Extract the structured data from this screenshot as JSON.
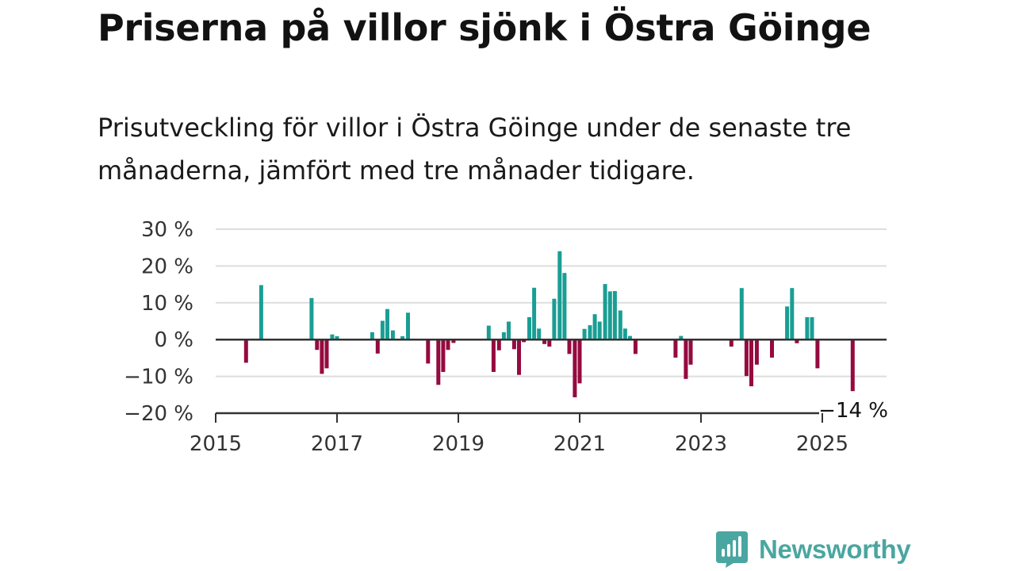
{
  "header": {
    "title": "Priserna på villor sjönk i Östra Göinge",
    "subtitle": "Prisutveckling för villor i Östra Göinge under de senaste tre månaderna, jämfört med tre månader tidigare."
  },
  "colors": {
    "positive": "#1a9e94",
    "negative": "#950a3f",
    "grid": "#dddddd",
    "zero_line": "#333333"
  },
  "logo": {
    "text": "Newsworthy",
    "icon": "bar-chart-speech-bubble-icon"
  },
  "chart_data": {
    "type": "bar",
    "title": "",
    "xlabel": "",
    "ylabel": "",
    "x_unit": "year (decimal)",
    "ylim": [
      -20,
      30
    ],
    "xlim": [
      2015,
      2026.1
    ],
    "grid": true,
    "y_ticks": [
      {
        "value": 30,
        "label": "30 %"
      },
      {
        "value": 20,
        "label": "20 %"
      },
      {
        "value": 10,
        "label": "10 %"
      },
      {
        "value": 0,
        "label": "0 %"
      },
      {
        "value": -10,
        "label": "−10 %"
      },
      {
        "value": -20,
        "label": "−20 %"
      }
    ],
    "x_ticks": [
      {
        "value": 2015,
        "label": "2015"
      },
      {
        "value": 2017,
        "label": "2017"
      },
      {
        "value": 2019,
        "label": "2019"
      },
      {
        "value": 2021,
        "label": "2021"
      },
      {
        "value": 2023,
        "label": "2023"
      },
      {
        "value": 2025,
        "label": "2025"
      }
    ],
    "series": [
      {
        "points": [
          {
            "x": 2015.5,
            "y": -6.3
          },
          {
            "x": 2015.75,
            "y": 14.8
          },
          {
            "x": 2016.58,
            "y": 11.3
          },
          {
            "x": 2016.67,
            "y": -2.8
          },
          {
            "x": 2016.75,
            "y": -9.3
          },
          {
            "x": 2016.83,
            "y": -7.8
          },
          {
            "x": 2016.92,
            "y": 1.4
          },
          {
            "x": 2017.0,
            "y": 0.9
          },
          {
            "x": 2017.58,
            "y": 2.0
          },
          {
            "x": 2017.67,
            "y": -3.8
          },
          {
            "x": 2017.75,
            "y": 5.1
          },
          {
            "x": 2017.83,
            "y": 8.3
          },
          {
            "x": 2017.92,
            "y": 2.5
          },
          {
            "x": 2018.08,
            "y": 0.9
          },
          {
            "x": 2018.17,
            "y": 7.3
          },
          {
            "x": 2018.5,
            "y": -6.5
          },
          {
            "x": 2018.67,
            "y": -12.3
          },
          {
            "x": 2018.75,
            "y": -8.8
          },
          {
            "x": 2018.83,
            "y": -2.8
          },
          {
            "x": 2018.92,
            "y": -0.9
          },
          {
            "x": 2019.5,
            "y": 3.8
          },
          {
            "x": 2019.58,
            "y": -8.8
          },
          {
            "x": 2019.67,
            "y": -2.9
          },
          {
            "x": 2019.75,
            "y": 2.0
          },
          {
            "x": 2019.83,
            "y": 4.9
          },
          {
            "x": 2019.92,
            "y": -2.6
          },
          {
            "x": 2020.0,
            "y": -9.6
          },
          {
            "x": 2020.08,
            "y": -0.7
          },
          {
            "x": 2020.17,
            "y": 6.1
          },
          {
            "x": 2020.25,
            "y": 14.1
          },
          {
            "x": 2020.33,
            "y": 3.0
          },
          {
            "x": 2020.42,
            "y": -1.2
          },
          {
            "x": 2020.5,
            "y": -1.9
          },
          {
            "x": 2020.58,
            "y": 11.1
          },
          {
            "x": 2020.67,
            "y": 24.0
          },
          {
            "x": 2020.75,
            "y": 18.1
          },
          {
            "x": 2020.83,
            "y": -3.9
          },
          {
            "x": 2020.92,
            "y": -15.7
          },
          {
            "x": 2021.0,
            "y": -11.9
          },
          {
            "x": 2021.08,
            "y": 2.9
          },
          {
            "x": 2021.17,
            "y": 3.9
          },
          {
            "x": 2021.25,
            "y": 6.9
          },
          {
            "x": 2021.33,
            "y": 4.9
          },
          {
            "x": 2021.42,
            "y": 15.1
          },
          {
            "x": 2021.5,
            "y": 13.1
          },
          {
            "x": 2021.58,
            "y": 13.2
          },
          {
            "x": 2021.67,
            "y": 7.9
          },
          {
            "x": 2021.75,
            "y": 3.0
          },
          {
            "x": 2021.83,
            "y": 1.0
          },
          {
            "x": 2021.92,
            "y": -3.9
          },
          {
            "x": 2022.58,
            "y": -4.9
          },
          {
            "x": 2022.67,
            "y": 1.0
          },
          {
            "x": 2022.75,
            "y": -10.7
          },
          {
            "x": 2022.83,
            "y": -6.8
          },
          {
            "x": 2023.5,
            "y": -1.9
          },
          {
            "x": 2023.67,
            "y": 14.0
          },
          {
            "x": 2023.75,
            "y": -9.9
          },
          {
            "x": 2023.83,
            "y": -12.7
          },
          {
            "x": 2023.92,
            "y": -6.8
          },
          {
            "x": 2024.17,
            "y": -4.9
          },
          {
            "x": 2024.42,
            "y": 9.0
          },
          {
            "x": 2024.5,
            "y": 14.0
          },
          {
            "x": 2024.58,
            "y": -1.0
          },
          {
            "x": 2024.75,
            "y": 6.1
          },
          {
            "x": 2024.83,
            "y": 6.1
          },
          {
            "x": 2024.92,
            "y": -7.8
          },
          {
            "x": 2025.5,
            "y": -14.0
          }
        ]
      }
    ],
    "annotation": {
      "label": "−14 %",
      "x": 2025.5,
      "y": -14.0
    }
  }
}
